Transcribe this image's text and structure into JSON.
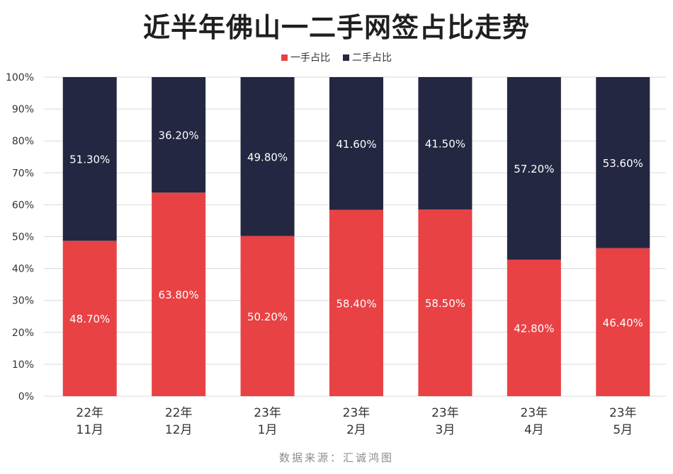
{
  "title": "近半年佛山一二手网签占比走势",
  "source": "数据来源：汇诚鸿图",
  "colors": {
    "first_hand": "#e84245",
    "second_hand": "#232741",
    "grid": "#d9d9d9",
    "axis_text": "#333333"
  },
  "chart_data": {
    "type": "bar",
    "stacked": true,
    "percent": true,
    "title": "近半年佛山一二手网签占比走势",
    "categories": [
      [
        "22年",
        "11月"
      ],
      [
        "22年",
        "12月"
      ],
      [
        "23年",
        "1月"
      ],
      [
        "23年",
        "2月"
      ],
      [
        "23年",
        "3月"
      ],
      [
        "23年",
        "4月"
      ],
      [
        "23年",
        "5月"
      ]
    ],
    "series": [
      {
        "name": "一手占比",
        "values": [
          48.7,
          63.8,
          50.2,
          58.4,
          58.5,
          42.8,
          46.4
        ],
        "labels": [
          "48.70%",
          "63.80%",
          "50.20%",
          "58.40%",
          "58.50%",
          "42.80%",
          "46.40%"
        ]
      },
      {
        "name": "二手占比",
        "values": [
          51.3,
          36.2,
          49.8,
          41.6,
          41.5,
          57.2,
          53.6
        ],
        "labels": [
          "51.30%",
          "36.20%",
          "49.80%",
          "41.60%",
          "41.50%",
          "57.20%",
          "53.60%"
        ]
      }
    ],
    "ylim": [
      0,
      100
    ],
    "yticks": [
      "0%",
      "10%",
      "20%",
      "30%",
      "40%",
      "50%",
      "60%",
      "70%",
      "80%",
      "90%",
      "100%"
    ],
    "grid": true,
    "legend": "top-center"
  }
}
